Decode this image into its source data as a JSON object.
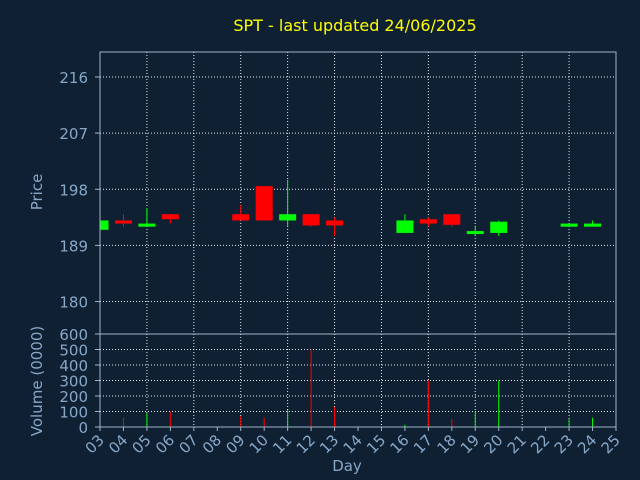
{
  "chart_data": {
    "type": "candlestick",
    "title": "SPT - last updated 24/06/2025",
    "xlabel": "Day",
    "price_panel": {
      "ylabel": "Price",
      "yticks": [
        180,
        189,
        198,
        207,
        216
      ],
      "ylim": [
        174.8,
        220.0
      ]
    },
    "volume_panel": {
      "ylabel": "Volume (0000)",
      "yticks": [
        0,
        100,
        200,
        300,
        400,
        500,
        600
      ],
      "ylim": [
        0,
        600
      ]
    },
    "x_tick_labels": [
      "03",
      "04",
      "05",
      "06",
      "07",
      "08",
      "09",
      "10",
      "11",
      "12",
      "13",
      "14",
      "15",
      "16",
      "17",
      "18",
      "19",
      "20",
      "21",
      "22",
      "23",
      "24",
      "25"
    ],
    "grid": true,
    "colors": {
      "background": "#0f2033",
      "title": "#ffff00",
      "axis_text": "#88a8c8",
      "axis_line": "#a0b4c8",
      "grid": "#ffffff",
      "up": "#00ff00",
      "down": "#ff0000"
    },
    "candles": [
      {
        "day": "03",
        "open": 191.5,
        "high": 193.0,
        "low": 191.5,
        "close": 193.0,
        "volume": 0
      },
      {
        "day": "04",
        "open": 193.0,
        "high": 194.0,
        "low": 192.0,
        "close": 192.5,
        "volume": 60
      },
      {
        "day": "05",
        "open": 192.0,
        "high": 195.0,
        "low": 192.0,
        "close": 192.5,
        "volume": 90
      },
      {
        "day": "06",
        "open": 194.0,
        "high": 194.0,
        "low": 192.5,
        "close": 193.2,
        "volume": 100
      },
      {
        "day": "09",
        "open": 194.0,
        "high": 195.5,
        "low": 193.0,
        "close": 193.0,
        "volume": 70
      },
      {
        "day": "10",
        "open": 198.5,
        "high": 198.5,
        "low": 193.0,
        "close": 193.0,
        "volume": 60
      },
      {
        "day": "11",
        "open": 193.0,
        "high": 199.5,
        "low": 192.0,
        "close": 194.0,
        "volume": 110
      },
      {
        "day": "12",
        "open": 194.0,
        "high": 194.0,
        "low": 192.0,
        "close": 192.2,
        "volume": 500
      },
      {
        "day": "13",
        "open": 193.0,
        "high": 193.5,
        "low": 190.5,
        "close": 192.2,
        "volume": 130
      },
      {
        "day": "16",
        "open": 191.0,
        "high": 194.0,
        "low": 191.0,
        "close": 193.0,
        "volume": 15
      },
      {
        "day": "17",
        "open": 193.2,
        "high": 193.5,
        "low": 192.0,
        "close": 192.5,
        "volume": 300
      },
      {
        "day": "18",
        "open": 194.0,
        "high": 194.0,
        "low": 192.0,
        "close": 192.3,
        "volume": 50
      },
      {
        "day": "19",
        "open": 191.0,
        "high": 192.0,
        "low": 190.5,
        "close": 191.3,
        "volume": 100
      },
      {
        "day": "20",
        "open": 191.0,
        "high": 193.0,
        "low": 190.5,
        "close": 192.8,
        "volume": 300
      },
      {
        "day": "23",
        "open": 192.0,
        "high": 192.5,
        "low": 192.0,
        "close": 192.5,
        "volume": 50
      },
      {
        "day": "24",
        "open": 192.0,
        "high": 193.0,
        "low": 192.0,
        "close": 192.5,
        "volume": 60
      }
    ]
  }
}
